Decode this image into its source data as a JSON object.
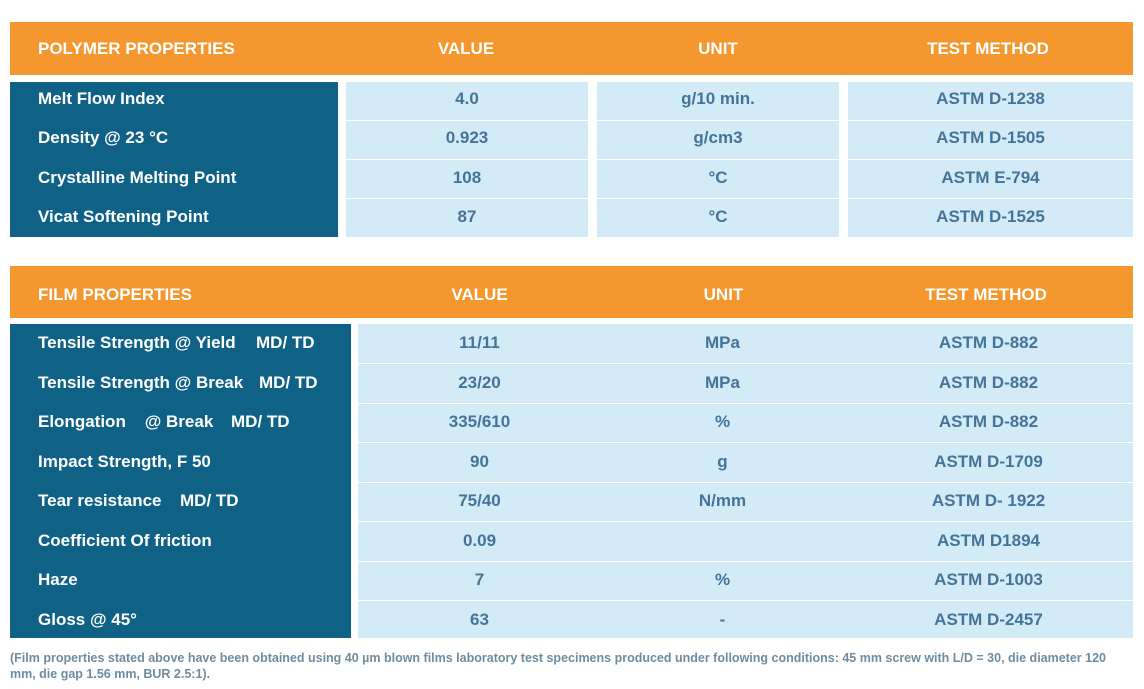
{
  "polymer": {
    "headers": {
      "property": "POLYMER PROPERTIES",
      "value": "VALUE",
      "unit": "UNIT",
      "method": "TEST METHOD"
    },
    "rows": [
      {
        "property": "Melt Flow Index",
        "value": "4.0",
        "unit": "g/10 min.",
        "method": "ASTM D-1238"
      },
      {
        "property": "Density @ 23 °C",
        "value": "0.923",
        "unit": "g/cm3",
        "method": "ASTM D-1505"
      },
      {
        "property": "Crystalline Melting Point",
        "value": "108",
        "unit": "°C",
        "method": "ASTM E-794"
      },
      {
        "property": "Vicat Softening Point",
        "value": "87",
        "unit": "°C",
        "method": "ASTM D-1525"
      }
    ]
  },
  "film": {
    "headers": {
      "property": "FILM PROPERTIES",
      "value": "VALUE",
      "unit": "UNIT",
      "method": "TEST METHOD"
    },
    "rows": [
      {
        "property": "Tensile Strength @ Yield",
        "direction": "MD/ TD",
        "value": "11/11",
        "unit": "MPa",
        "method": "ASTM D-882"
      },
      {
        "property": "Tensile Strength @ Break",
        "direction": "MD/ TD",
        "value": "23/20",
        "unit": "MPa",
        "method": "ASTM D-882"
      },
      {
        "property": "Elongation    @ Break",
        "direction": "MD/ TD",
        "value": "335/610",
        "unit": "%",
        "method": "ASTM D-882"
      },
      {
        "property": "Impact Strength, F 50",
        "value": "90",
        "unit": "g",
        "method": "ASTM D-1709"
      },
      {
        "property": "Tear resistance",
        "direction": "MD/ TD",
        "value": "75/40",
        "unit": "N/mm",
        "method": "ASTM D- 1922"
      },
      {
        "property": "Coefficient Of friction",
        "value": "0.09",
        "unit": "",
        "method": "ASTM D1894"
      },
      {
        "property": "Haze",
        "value": "7",
        "unit": "%",
        "method": "ASTM D-1003"
      },
      {
        "property": "Gloss @ 45°",
        "value": "63",
        "unit": "-",
        "method": "ASTM D-2457"
      }
    ]
  },
  "footnote": "(Film properties stated above have been obtained using 40 µm blown films laboratory test specimens produced under following conditions: 45 mm screw with L/D = 30, die diameter 120 mm, die gap 1.56 mm, BUR 2.5:1)."
}
